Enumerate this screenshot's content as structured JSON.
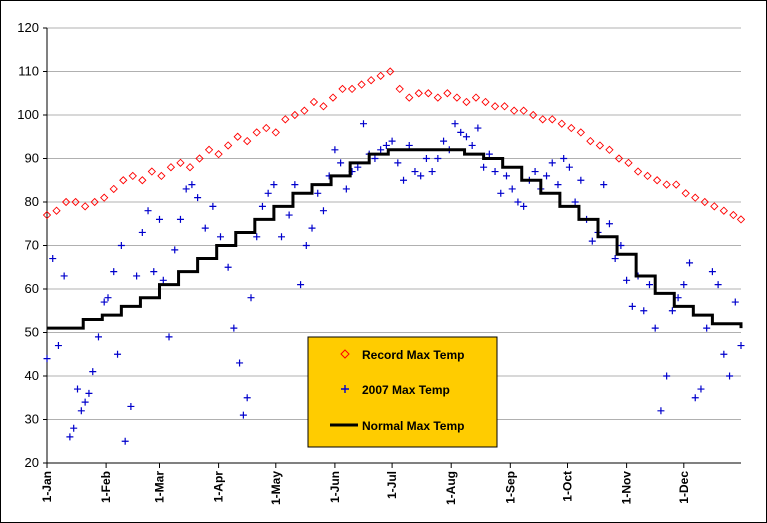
{
  "chart_data": {
    "type": "scatter",
    "title": "",
    "xlabel": "",
    "ylabel": "",
    "ylim": [
      20,
      120
    ],
    "yticks": [
      20,
      30,
      40,
      50,
      60,
      70,
      80,
      90,
      100,
      110,
      120
    ],
    "xlim_day": [
      1,
      365
    ],
    "xtick_labels": [
      "1-Jan",
      "1-Feb",
      "1-Mar",
      "1-Apr",
      "1-May",
      "1-Jun",
      "1-Jul",
      "1-Aug",
      "1-Sep",
      "1-Oct",
      "1-Nov",
      "1-Dec"
    ],
    "xtick_days": [
      1,
      32,
      60,
      91,
      121,
      152,
      182,
      213,
      244,
      274,
      305,
      335
    ],
    "grid": "horizontal",
    "legend_position": "bottom-center",
    "colors": {
      "record": "#ff0000",
      "y2007": "#0000cc",
      "normal": "#000000",
      "legend_bg": "#ffcc00",
      "grid": "#b0b0b0"
    },
    "series": [
      {
        "name": "Record Max Temp",
        "marker": "diamond",
        "points": [
          [
            1,
            77
          ],
          [
            6,
            78
          ],
          [
            11,
            80
          ],
          [
            16,
            80
          ],
          [
            21,
            79
          ],
          [
            26,
            80
          ],
          [
            31,
            81
          ],
          [
            36,
            83
          ],
          [
            41,
            85
          ],
          [
            46,
            86
          ],
          [
            51,
            85
          ],
          [
            56,
            87
          ],
          [
            61,
            86
          ],
          [
            66,
            88
          ],
          [
            71,
            89
          ],
          [
            76,
            88
          ],
          [
            81,
            90
          ],
          [
            86,
            92
          ],
          [
            91,
            91
          ],
          [
            96,
            93
          ],
          [
            101,
            95
          ],
          [
            106,
            94
          ],
          [
            111,
            96
          ],
          [
            116,
            97
          ],
          [
            121,
            96
          ],
          [
            126,
            99
          ],
          [
            131,
            100
          ],
          [
            136,
            101
          ],
          [
            141,
            103
          ],
          [
            146,
            102
          ],
          [
            151,
            104
          ],
          [
            156,
            106
          ],
          [
            161,
            106
          ],
          [
            166,
            107
          ],
          [
            171,
            108
          ],
          [
            176,
            109
          ],
          [
            181,
            110
          ],
          [
            186,
            106
          ],
          [
            191,
            104
          ],
          [
            196,
            105
          ],
          [
            201,
            105
          ],
          [
            206,
            104
          ],
          [
            211,
            105
          ],
          [
            216,
            104
          ],
          [
            221,
            103
          ],
          [
            226,
            104
          ],
          [
            231,
            103
          ],
          [
            236,
            102
          ],
          [
            241,
            102
          ],
          [
            246,
            101
          ],
          [
            251,
            101
          ],
          [
            256,
            100
          ],
          [
            261,
            99
          ],
          [
            266,
            99
          ],
          [
            271,
            98
          ],
          [
            276,
            97
          ],
          [
            281,
            96
          ],
          [
            286,
            94
          ],
          [
            291,
            93
          ],
          [
            296,
            92
          ],
          [
            301,
            90
          ],
          [
            306,
            89
          ],
          [
            311,
            87
          ],
          [
            316,
            86
          ],
          [
            321,
            85
          ],
          [
            326,
            84
          ],
          [
            331,
            84
          ],
          [
            336,
            82
          ],
          [
            341,
            81
          ],
          [
            346,
            80
          ],
          [
            351,
            79
          ],
          [
            356,
            78
          ],
          [
            361,
            77
          ],
          [
            365,
            76
          ]
        ]
      },
      {
        "name": "2007 Max Temp",
        "marker": "plus",
        "points": [
          [
            1,
            44
          ],
          [
            4,
            67
          ],
          [
            7,
            47
          ],
          [
            10,
            63
          ],
          [
            13,
            26
          ],
          [
            15,
            28
          ],
          [
            17,
            37
          ],
          [
            19,
            32
          ],
          [
            21,
            34
          ],
          [
            23,
            36
          ],
          [
            25,
            41
          ],
          [
            28,
            49
          ],
          [
            31,
            57
          ],
          [
            33,
            58
          ],
          [
            36,
            64
          ],
          [
            38,
            45
          ],
          [
            40,
            70
          ],
          [
            42,
            25
          ],
          [
            45,
            33
          ],
          [
            48,
            63
          ],
          [
            51,
            73
          ],
          [
            54,
            78
          ],
          [
            57,
            64
          ],
          [
            60,
            76
          ],
          [
            62,
            62
          ],
          [
            65,
            49
          ],
          [
            68,
            69
          ],
          [
            71,
            76
          ],
          [
            74,
            83
          ],
          [
            77,
            84
          ],
          [
            80,
            81
          ],
          [
            84,
            74
          ],
          [
            88,
            79
          ],
          [
            92,
            72
          ],
          [
            96,
            65
          ],
          [
            99,
            51
          ],
          [
            102,
            43
          ],
          [
            104,
            31
          ],
          [
            106,
            35
          ],
          [
            108,
            58
          ],
          [
            111,
            72
          ],
          [
            114,
            79
          ],
          [
            117,
            82
          ],
          [
            120,
            84
          ],
          [
            124,
            72
          ],
          [
            128,
            77
          ],
          [
            131,
            84
          ],
          [
            134,
            61
          ],
          [
            137,
            70
          ],
          [
            140,
            74
          ],
          [
            143,
            82
          ],
          [
            146,
            78
          ],
          [
            149,
            86
          ],
          [
            152,
            92
          ],
          [
            155,
            89
          ],
          [
            158,
            83
          ],
          [
            161,
            87
          ],
          [
            164,
            88
          ],
          [
            167,
            98
          ],
          [
            170,
            91
          ],
          [
            173,
            90
          ],
          [
            176,
            92
          ],
          [
            179,
            93
          ],
          [
            182,
            94
          ],
          [
            185,
            89
          ],
          [
            188,
            85
          ],
          [
            191,
            93
          ],
          [
            194,
            87
          ],
          [
            197,
            86
          ],
          [
            200,
            90
          ],
          [
            203,
            87
          ],
          [
            206,
            90
          ],
          [
            209,
            94
          ],
          [
            212,
            92
          ],
          [
            215,
            98
          ],
          [
            218,
            96
          ],
          [
            221,
            95
          ],
          [
            224,
            93
          ],
          [
            227,
            97
          ],
          [
            230,
            88
          ],
          [
            233,
            91
          ],
          [
            236,
            87
          ],
          [
            239,
            82
          ],
          [
            242,
            86
          ],
          [
            245,
            83
          ],
          [
            248,
            80
          ],
          [
            251,
            79
          ],
          [
            254,
            85
          ],
          [
            257,
            87
          ],
          [
            260,
            83
          ],
          [
            263,
            86
          ],
          [
            266,
            89
          ],
          [
            269,
            84
          ],
          [
            272,
            90
          ],
          [
            275,
            88
          ],
          [
            278,
            80
          ],
          [
            281,
            85
          ],
          [
            284,
            76
          ],
          [
            287,
            71
          ],
          [
            290,
            73
          ],
          [
            293,
            84
          ],
          [
            296,
            75
          ],
          [
            299,
            67
          ],
          [
            302,
            70
          ],
          [
            305,
            62
          ],
          [
            308,
            56
          ],
          [
            311,
            63
          ],
          [
            314,
            55
          ],
          [
            317,
            61
          ],
          [
            320,
            51
          ],
          [
            323,
            32
          ],
          [
            326,
            40
          ],
          [
            329,
            55
          ],
          [
            332,
            58
          ],
          [
            335,
            61
          ],
          [
            338,
            66
          ],
          [
            341,
            35
          ],
          [
            344,
            37
          ],
          [
            347,
            51
          ],
          [
            350,
            64
          ],
          [
            353,
            61
          ],
          [
            356,
            45
          ],
          [
            359,
            40
          ],
          [
            362,
            57
          ],
          [
            365,
            47
          ]
        ]
      },
      {
        "name": "Normal Max Temp",
        "marker": "line",
        "points": [
          [
            1,
            51
          ],
          [
            10,
            51
          ],
          [
            20,
            53
          ],
          [
            30,
            54
          ],
          [
            40,
            56
          ],
          [
            50,
            58
          ],
          [
            60,
            61
          ],
          [
            70,
            64
          ],
          [
            80,
            67
          ],
          [
            90,
            70
          ],
          [
            100,
            73
          ],
          [
            110,
            76
          ],
          [
            120,
            79
          ],
          [
            130,
            82
          ],
          [
            140,
            84
          ],
          [
            150,
            86
          ],
          [
            160,
            89
          ],
          [
            170,
            91
          ],
          [
            180,
            92
          ],
          [
            190,
            92
          ],
          [
            200,
            92
          ],
          [
            210,
            92
          ],
          [
            220,
            91
          ],
          [
            230,
            90
          ],
          [
            240,
            88
          ],
          [
            250,
            85
          ],
          [
            260,
            82
          ],
          [
            270,
            79
          ],
          [
            280,
            76
          ],
          [
            290,
            72
          ],
          [
            300,
            68
          ],
          [
            310,
            63
          ],
          [
            320,
            59
          ],
          [
            330,
            56
          ],
          [
            340,
            54
          ],
          [
            350,
            52
          ],
          [
            358,
            52
          ],
          [
            365,
            51
          ]
        ]
      }
    ]
  }
}
